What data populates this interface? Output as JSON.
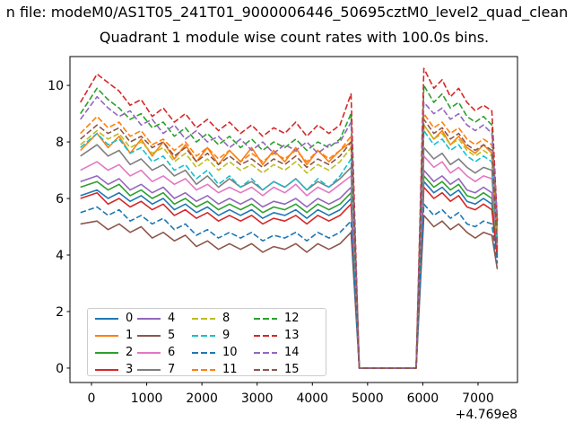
{
  "figure": {
    "title_line1": "n file: modeM0/AS1T05_241T01_9000006446_50695cztM0_level2_quad_clean",
    "title_line2": "Quadrant 1 module wise count rates with 100.0s bins."
  },
  "chart_data": {
    "type": "line",
    "title": "Quadrant 1 module wise count rates with 100.0s bins.",
    "xlabel": "",
    "ylabel": "",
    "xlim": [
      -390,
      7715
    ],
    "ylim": [
      -0.51,
      11.02
    ],
    "xticks": [
      0,
      1000,
      2000,
      3000,
      4000,
      5000,
      6000,
      7000
    ],
    "xtick_labels": [
      "0",
      "1000",
      "2000",
      "3000",
      "4000",
      "5000",
      "6000",
      "7000"
    ],
    "yticks": [
      0,
      2,
      4,
      6,
      8,
      10
    ],
    "ytick_labels": [
      "0",
      "2",
      "4",
      "6",
      "8",
      "10"
    ],
    "x_axis_offset_text": "+4.769e8",
    "grid": false,
    "legend_position": "lower left",
    "legend_columns": 4,
    "x": [
      -200,
      100,
      300,
      500,
      700,
      900,
      1100,
      1300,
      1500,
      1700,
      1900,
      2100,
      2300,
      2500,
      2700,
      2900,
      3100,
      3300,
      3500,
      3700,
      3900,
      4100,
      4300,
      4500,
      4700,
      4850,
      5100,
      5500,
      5880,
      6020,
      6200,
      6350,
      6500,
      6650,
      6800,
      6950,
      7100,
      7250,
      7350
    ],
    "series": [
      {
        "name": "0",
        "color": "#1f77b4",
        "dash": false,
        "values": [
          6.1,
          6.3,
          6.0,
          6.2,
          5.9,
          6.1,
          5.8,
          6.0,
          5.6,
          5.8,
          5.5,
          5.7,
          5.4,
          5.6,
          5.4,
          5.6,
          5.3,
          5.5,
          5.4,
          5.6,
          5.3,
          5.6,
          5.4,
          5.6,
          6.0,
          0,
          0,
          0,
          0,
          6.6,
          6.2,
          6.4,
          6.1,
          6.3,
          5.9,
          5.8,
          6.0,
          5.8,
          4.0
        ]
      },
      {
        "name": "1",
        "color": "#ff7f0e",
        "dash": false,
        "values": [
          7.7,
          8.3,
          7.8,
          8.2,
          7.6,
          8.1,
          7.5,
          8.0,
          7.4,
          7.9,
          7.3,
          7.8,
          7.2,
          7.7,
          7.3,
          7.8,
          7.2,
          7.7,
          7.3,
          7.8,
          7.2,
          7.7,
          7.3,
          7.7,
          8.0,
          0,
          0,
          0,
          0,
          8.6,
          8.1,
          8.4,
          7.9,
          8.2,
          7.8,
          7.6,
          7.9,
          7.6,
          4.9
        ]
      },
      {
        "name": "2",
        "color": "#2ca02c",
        "dash": false,
        "values": [
          6.4,
          6.6,
          6.3,
          6.5,
          6.1,
          6.3,
          6.0,
          6.2,
          5.8,
          6.0,
          5.7,
          5.9,
          5.6,
          5.8,
          5.6,
          5.8,
          5.5,
          5.7,
          5.6,
          5.8,
          5.5,
          5.8,
          5.6,
          5.8,
          6.2,
          0,
          0,
          0,
          0,
          6.8,
          6.4,
          6.6,
          6.3,
          6.5,
          6.1,
          6.0,
          6.2,
          6.0,
          4.1
        ]
      },
      {
        "name": "3",
        "color": "#d62728",
        "dash": false,
        "values": [
          6.0,
          6.2,
          5.8,
          6.0,
          5.7,
          5.9,
          5.6,
          5.8,
          5.4,
          5.6,
          5.3,
          5.5,
          5.2,
          5.4,
          5.2,
          5.4,
          5.1,
          5.3,
          5.2,
          5.4,
          5.1,
          5.4,
          5.2,
          5.4,
          5.8,
          0,
          0,
          0,
          0,
          6.4,
          6.0,
          6.2,
          5.9,
          6.1,
          5.7,
          5.6,
          5.8,
          5.6,
          3.9
        ]
      },
      {
        "name": "4",
        "color": "#9467bd",
        "dash": false,
        "values": [
          6.6,
          6.8,
          6.5,
          6.7,
          6.3,
          6.5,
          6.2,
          6.4,
          6.0,
          6.2,
          5.9,
          6.1,
          5.8,
          6.0,
          5.8,
          6.0,
          5.7,
          5.9,
          5.8,
          6.0,
          5.7,
          6.0,
          5.8,
          6.0,
          6.4,
          0,
          0,
          0,
          0,
          7.0,
          6.6,
          6.8,
          6.5,
          6.7,
          6.3,
          6.2,
          6.4,
          6.2,
          4.6
        ]
      },
      {
        "name": "5",
        "color": "#8c564b",
        "dash": false,
        "values": [
          5.1,
          5.2,
          4.9,
          5.1,
          4.8,
          5.0,
          4.6,
          4.8,
          4.5,
          4.7,
          4.3,
          4.5,
          4.2,
          4.4,
          4.2,
          4.4,
          4.1,
          4.3,
          4.2,
          4.4,
          4.1,
          4.4,
          4.2,
          4.4,
          4.8,
          0,
          0,
          0,
          0,
          5.4,
          5.0,
          5.2,
          4.9,
          5.1,
          4.8,
          4.6,
          4.8,
          4.7,
          3.5
        ]
      },
      {
        "name": "6",
        "color": "#e377c2",
        "dash": false,
        "values": [
          7.0,
          7.3,
          7.0,
          7.2,
          6.8,
          7.0,
          6.6,
          6.8,
          6.5,
          6.7,
          6.3,
          6.5,
          6.2,
          6.4,
          6.2,
          6.4,
          6.1,
          6.4,
          6.2,
          6.5,
          6.1,
          6.4,
          6.2,
          6.5,
          6.8,
          0,
          0,
          0,
          0,
          7.5,
          7.1,
          7.3,
          6.9,
          7.1,
          6.8,
          6.6,
          6.8,
          6.7,
          4.3
        ]
      },
      {
        "name": "7",
        "color": "#7f7f7f",
        "dash": false,
        "values": [
          7.5,
          7.9,
          7.5,
          7.7,
          7.2,
          7.4,
          7.0,
          7.2,
          6.8,
          7.0,
          6.5,
          6.8,
          6.4,
          6.7,
          6.4,
          6.6,
          6.3,
          6.6,
          6.4,
          6.7,
          6.3,
          6.6,
          6.4,
          6.7,
          7.1,
          0,
          0,
          0,
          0,
          7.8,
          7.4,
          7.6,
          7.2,
          7.4,
          7.1,
          6.9,
          7.1,
          7.0,
          4.5
        ]
      },
      {
        "name": "8",
        "color": "#bcbd22",
        "dash": true,
        "values": [
          7.9,
          8.4,
          8.1,
          8.3,
          7.8,
          8.0,
          7.6,
          7.8,
          7.3,
          7.6,
          7.1,
          7.4,
          7.0,
          7.3,
          7.0,
          7.2,
          6.9,
          7.2,
          7.0,
          7.3,
          6.9,
          7.2,
          7.0,
          7.3,
          7.8,
          0,
          0,
          0,
          0,
          8.6,
          8.1,
          8.3,
          7.9,
          8.1,
          7.7,
          7.5,
          7.7,
          7.5,
          4.7
        ]
      },
      {
        "name": "9",
        "color": "#17becf",
        "dash": true,
        "values": [
          7.8,
          8.3,
          7.9,
          8.1,
          7.6,
          7.8,
          7.3,
          7.5,
          7.0,
          7.2,
          6.7,
          7.0,
          6.5,
          6.8,
          6.4,
          6.7,
          6.3,
          6.6,
          6.4,
          6.7,
          6.3,
          6.7,
          6.4,
          6.8,
          7.4,
          0,
          0,
          0,
          0,
          8.4,
          7.9,
          8.1,
          7.7,
          7.9,
          7.5,
          7.3,
          7.5,
          7.3,
          4.4
        ]
      },
      {
        "name": "10",
        "color": "#1f77b4",
        "dash": true,
        "values": [
          5.5,
          5.7,
          5.4,
          5.6,
          5.2,
          5.4,
          5.1,
          5.3,
          4.9,
          5.1,
          4.7,
          4.9,
          4.6,
          4.8,
          4.6,
          4.8,
          4.5,
          4.7,
          4.6,
          4.8,
          4.5,
          4.8,
          4.6,
          4.8,
          5.2,
          0,
          0,
          0,
          0,
          5.8,
          5.4,
          5.6,
          5.3,
          5.5,
          5.1,
          5.0,
          5.2,
          5.1,
          3.7
        ]
      },
      {
        "name": "11",
        "color": "#ff7f0e",
        "dash": true,
        "values": [
          8.3,
          8.9,
          8.5,
          8.7,
          8.2,
          8.4,
          7.9,
          8.1,
          7.7,
          8.0,
          7.5,
          7.8,
          7.4,
          7.7,
          7.3,
          7.6,
          7.3,
          7.6,
          7.4,
          7.7,
          7.3,
          7.7,
          7.4,
          7.7,
          8.2,
          0,
          0,
          0,
          0,
          9.0,
          8.5,
          8.7,
          8.3,
          8.5,
          8.1,
          7.9,
          8.1,
          7.9,
          4.8
        ]
      },
      {
        "name": "12",
        "color": "#2ca02c",
        "dash": true,
        "values": [
          9.0,
          9.9,
          9.5,
          9.2,
          8.8,
          9.0,
          8.5,
          8.7,
          8.2,
          8.5,
          8.0,
          8.3,
          7.9,
          8.2,
          7.8,
          8.1,
          7.7,
          8.0,
          7.8,
          8.1,
          7.7,
          8.0,
          7.8,
          8.1,
          9.0,
          0,
          0,
          0,
          0,
          10.0,
          9.4,
          9.7,
          9.2,
          9.4,
          8.9,
          8.7,
          8.9,
          8.6,
          5.0
        ]
      },
      {
        "name": "13",
        "color": "#d62728",
        "dash": true,
        "values": [
          9.4,
          10.4,
          10.1,
          9.8,
          9.3,
          9.5,
          8.9,
          9.2,
          8.7,
          9.0,
          8.5,
          8.8,
          8.4,
          8.7,
          8.3,
          8.6,
          8.2,
          8.5,
          8.3,
          8.7,
          8.2,
          8.6,
          8.3,
          8.6,
          9.7,
          0,
          0,
          0,
          0,
          10.6,
          9.9,
          10.2,
          9.6,
          9.9,
          9.4,
          9.1,
          9.3,
          9.1,
          5.2
        ]
      },
      {
        "name": "14",
        "color": "#9467bd",
        "dash": true,
        "values": [
          8.8,
          9.6,
          9.2,
          8.9,
          9.1,
          8.6,
          8.8,
          8.3,
          8.6,
          8.1,
          8.4,
          8.0,
          8.2,
          7.8,
          8.1,
          7.7,
          8.0,
          7.6,
          7.9,
          7.7,
          8.0,
          7.6,
          7.9,
          8.0,
          8.7,
          0,
          0,
          0,
          0,
          9.4,
          9.0,
          9.2,
          8.8,
          9.0,
          8.6,
          8.4,
          8.6,
          8.3,
          5.3
        ]
      },
      {
        "name": "15",
        "color": "#8c564b",
        "dash": true,
        "values": [
          8.1,
          8.6,
          8.3,
          8.5,
          8.0,
          8.2,
          7.8,
          8.0,
          7.5,
          7.8,
          7.3,
          7.6,
          7.2,
          7.5,
          7.2,
          7.4,
          7.1,
          7.4,
          7.2,
          7.5,
          7.1,
          7.4,
          7.2,
          7.5,
          8.0,
          0,
          0,
          0,
          0,
          8.8,
          8.3,
          8.5,
          8.1,
          8.3,
          7.9,
          7.7,
          7.9,
          7.7,
          4.2
        ]
      }
    ]
  }
}
